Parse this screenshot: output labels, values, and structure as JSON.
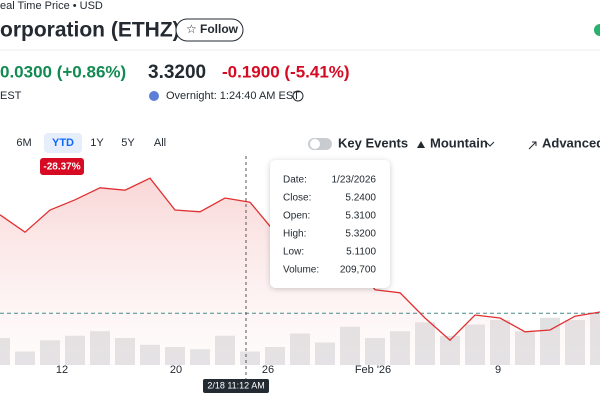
{
  "header": {
    "source": "eal Time Price • USD",
    "title": "orporation (ETHZ)",
    "follow": "Follow"
  },
  "quote": {
    "change": "0.0300 (+0.86%)",
    "session": "EST",
    "overnight_price": "3.3200",
    "overnight_change": "-0.1900 (-5.41%)",
    "overnight_time": "Overnight: 1:24:40 AM EST"
  },
  "toolbar": {
    "ranges": [
      "6M",
      "YTD",
      "1Y",
      "5Y",
      "All"
    ],
    "range_badge": "-28.37%",
    "key_events": "Key Events",
    "chart_type": "Mountain",
    "advanced": "Advanced C"
  },
  "tooltip": {
    "rows": [
      [
        "Date:",
        "1/23/2026"
      ],
      [
        "Close:",
        "5.2400"
      ],
      [
        "Open:",
        "5.3100"
      ],
      [
        "High:",
        "5.3200"
      ],
      [
        "Low:",
        "5.1100"
      ],
      [
        "Volume:",
        "209,700"
      ]
    ]
  },
  "crosshair_label": "2/18 11:12 AM",
  "chart_data": {
    "type": "line",
    "x_labels": [
      "12",
      "20",
      "26",
      "Feb '26",
      "9"
    ],
    "values": [
      4.99,
      4.7,
      5.07,
      5.24,
      5.44,
      5.4,
      5.6,
      5.07,
      5.04,
      5.27,
      5.2,
      4.7,
      4.82,
      4.49,
      4.32,
      3.74,
      3.69,
      3.27,
      2.9,
      3.32,
      3.27,
      3.04,
      3.07,
      3.3,
      3.37
    ],
    "volumes": [
      120000,
      60000,
      110000,
      130000,
      150000,
      120000,
      90000,
      80000,
      70000,
      130000,
      60000,
      80000,
      140000,
      100000,
      170000,
      120000,
      150000,
      190000,
      130000,
      180000,
      200000,
      150000,
      210000,
      200000,
      230000
    ],
    "reference": 3.35,
    "color": "#e03131",
    "ylim": [
      2.07,
      6.07
    ],
    "vlim": [
      0,
      400000
    ]
  }
}
